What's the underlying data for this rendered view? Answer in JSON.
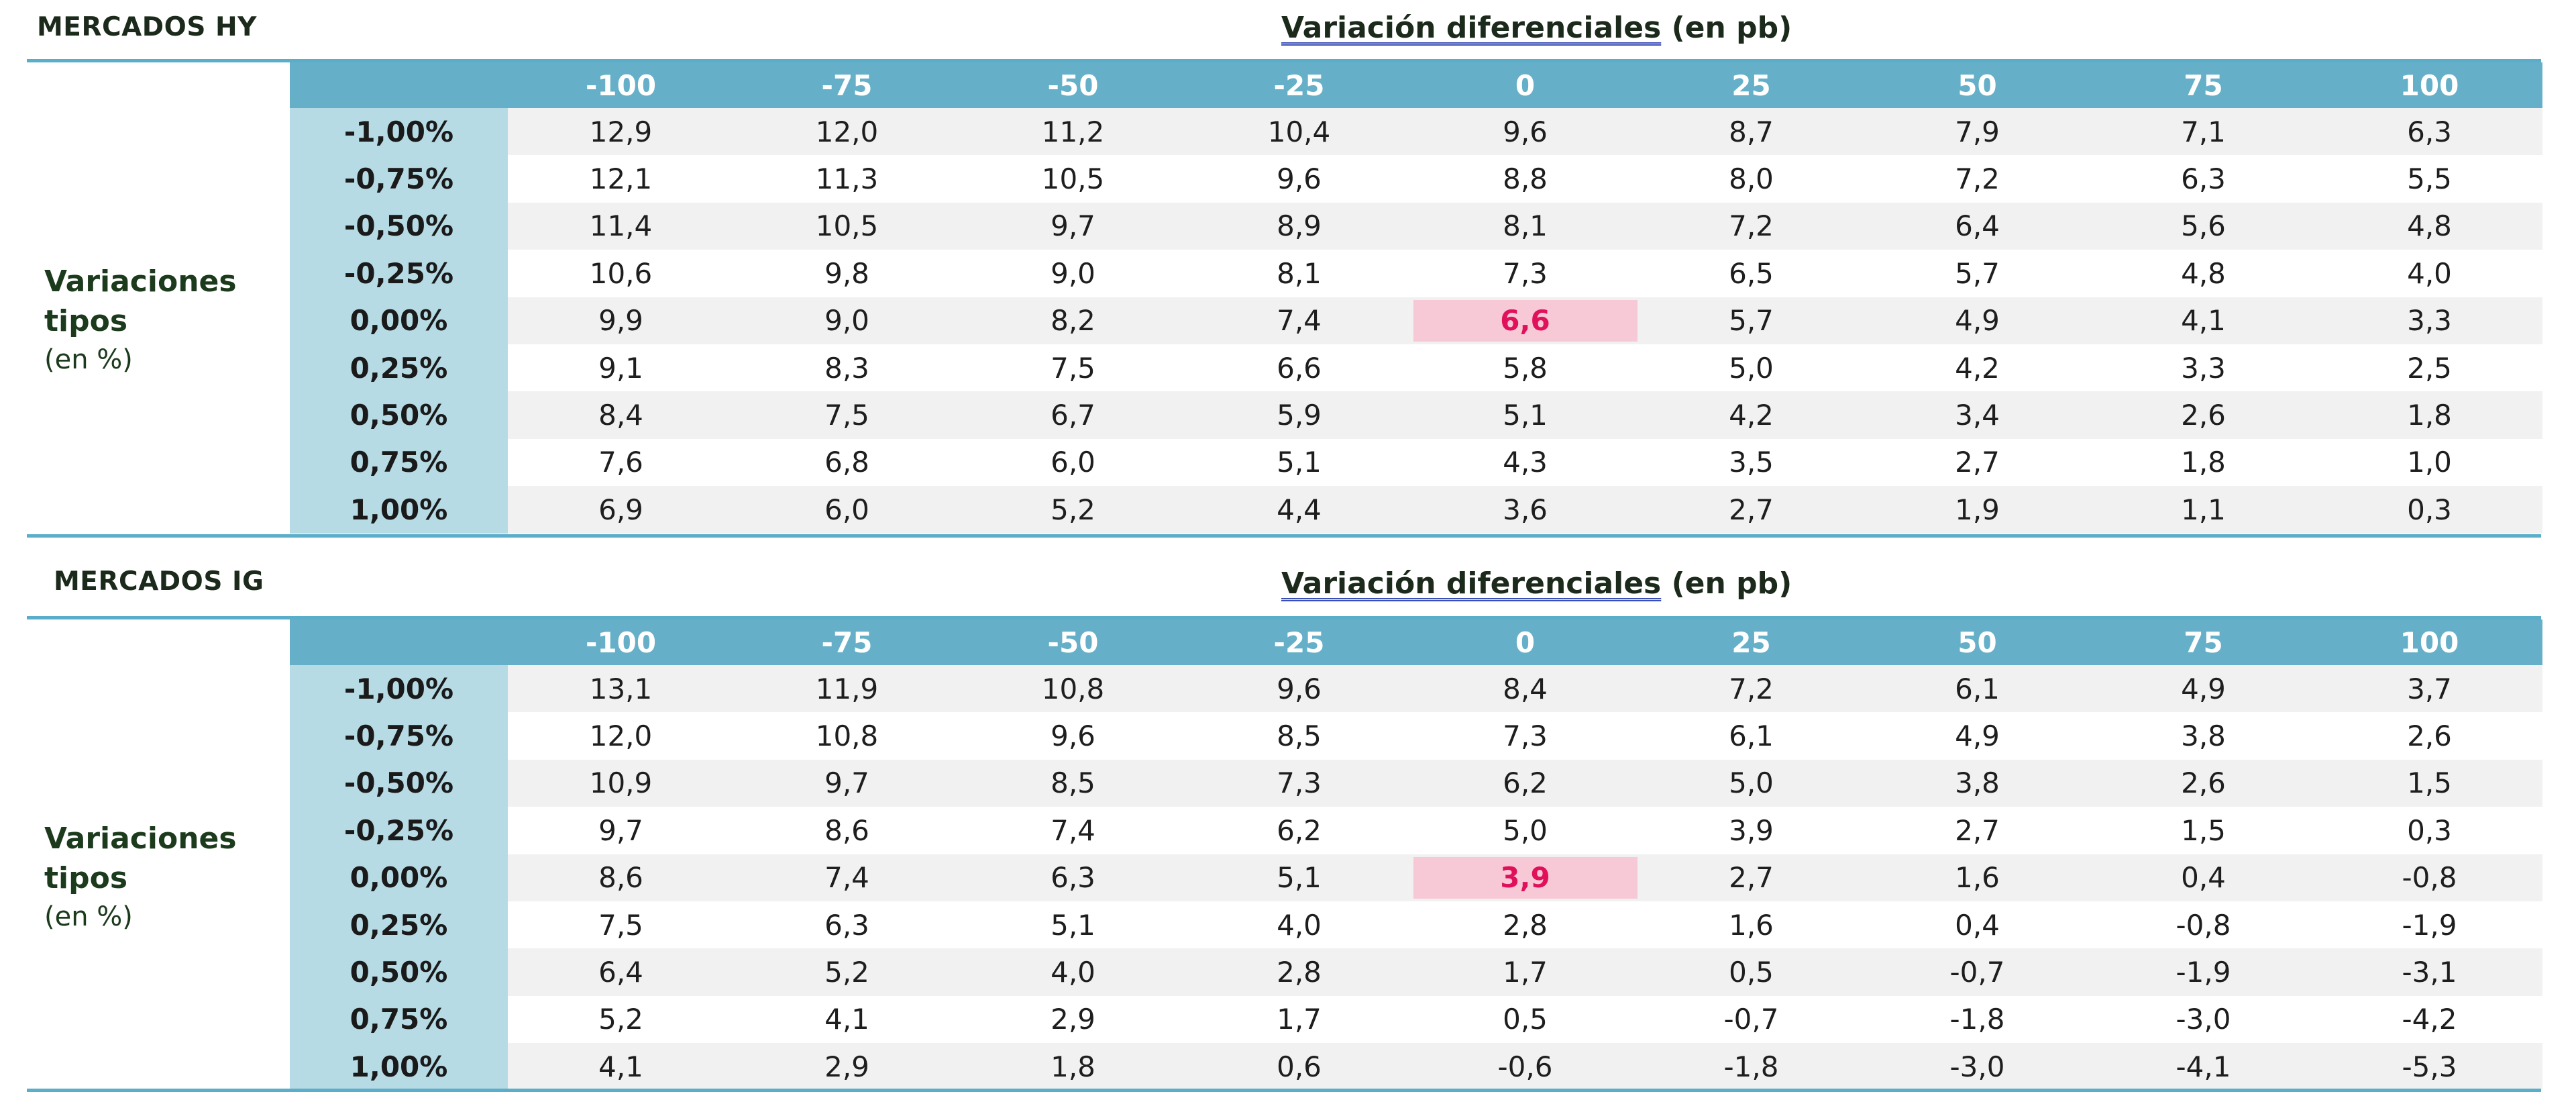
{
  "hy": {
    "title": "MERCADOS HY",
    "subtitle_underlined": "Variación diferenciales",
    "subtitle_rest": " (en pb)",
    "side_label_line1": "Variaciones",
    "side_label_line2": "tipos",
    "side_label_line3": "(en %)",
    "columns": [
      "-100",
      "-75",
      "-50",
      "-25",
      "0",
      "25",
      "50",
      "75",
      "100"
    ],
    "rows": [
      {
        "label": "-1,00%",
        "values": [
          "12,9",
          "12,0",
          "11,2",
          "10,4",
          "9,6",
          "8,7",
          "7,9",
          "7,1",
          "6,3"
        ]
      },
      {
        "label": "-0,75%",
        "values": [
          "12,1",
          "11,3",
          "10,5",
          "9,6",
          "8,8",
          "8,0",
          "7,2",
          "6,3",
          "5,5"
        ]
      },
      {
        "label": "-0,50%",
        "values": [
          "11,4",
          "10,5",
          "9,7",
          "8,9",
          "8,1",
          "7,2",
          "6,4",
          "5,6",
          "4,8"
        ]
      },
      {
        "label": "-0,25%",
        "values": [
          "10,6",
          "9,8",
          "9,0",
          "8,1",
          "7,3",
          "6,5",
          "5,7",
          "4,8",
          "4,0"
        ]
      },
      {
        "label": "0,00%",
        "values": [
          "9,9",
          "9,0",
          "8,2",
          "7,4",
          "6,6",
          "5,7",
          "4,9",
          "4,1",
          "3,3"
        ]
      },
      {
        "label": "0,25%",
        "values": [
          "9,1",
          "8,3",
          "7,5",
          "6,6",
          "5,8",
          "5,0",
          "4,2",
          "3,3",
          "2,5"
        ]
      },
      {
        "label": "0,50%",
        "values": [
          "8,4",
          "7,5",
          "6,7",
          "5,9",
          "5,1",
          "4,2",
          "3,4",
          "2,6",
          "1,8"
        ]
      },
      {
        "label": "0,75%",
        "values": [
          "7,6",
          "6,8",
          "6,0",
          "5,1",
          "4,3",
          "3,5",
          "2,7",
          "1,8",
          "1,0"
        ]
      },
      {
        "label": "1,00%",
        "values": [
          "6,9",
          "6,0",
          "5,2",
          "4,4",
          "3,6",
          "2,7",
          "1,9",
          "1,1",
          "0,3"
        ]
      }
    ],
    "highlight": {
      "row": 4,
      "col": 4
    }
  },
  "ig": {
    "title": "MERCADOS IG",
    "subtitle_underlined": "Variación diferenciales",
    "subtitle_rest": " (en pb)",
    "side_label_line1": "Variaciones",
    "side_label_line2": "tipos",
    "side_label_line3": "(en %)",
    "columns": [
      "-100",
      "-75",
      "-50",
      "-25",
      "0",
      "25",
      "50",
      "75",
      "100"
    ],
    "rows": [
      {
        "label": "-1,00%",
        "values": [
          "13,1",
          "11,9",
          "10,8",
          "9,6",
          "8,4",
          "7,2",
          "6,1",
          "4,9",
          "3,7"
        ]
      },
      {
        "label": "-0,75%",
        "values": [
          "12,0",
          "10,8",
          "9,6",
          "8,5",
          "7,3",
          "6,1",
          "4,9",
          "3,8",
          "2,6"
        ]
      },
      {
        "label": "-0,50%",
        "values": [
          "10,9",
          "9,7",
          "8,5",
          "7,3",
          "6,2",
          "5,0",
          "3,8",
          "2,6",
          "1,5"
        ]
      },
      {
        "label": "-0,25%",
        "values": [
          "9,7",
          "8,6",
          "7,4",
          "6,2",
          "5,0",
          "3,9",
          "2,7",
          "1,5",
          "0,3"
        ]
      },
      {
        "label": "0,00%",
        "values": [
          "8,6",
          "7,4",
          "6,3",
          "5,1",
          "3,9",
          "2,7",
          "1,6",
          "0,4",
          "-0,8"
        ]
      },
      {
        "label": "0,25%",
        "values": [
          "7,5",
          "6,3",
          "5,1",
          "4,0",
          "2,8",
          "1,6",
          "0,4",
          "-0,8",
          "-1,9"
        ]
      },
      {
        "label": "0,50%",
        "values": [
          "6,4",
          "5,2",
          "4,0",
          "2,8",
          "1,7",
          "0,5",
          "-0,7",
          "-1,9",
          "-3,1"
        ]
      },
      {
        "label": "0,75%",
        "values": [
          "5,2",
          "4,1",
          "2,9",
          "1,7",
          "0,5",
          "-0,7",
          "-1,8",
          "-3,0",
          "-4,2"
        ]
      },
      {
        "label": "1,00%",
        "values": [
          "4,1",
          "2,9",
          "1,8",
          "0,6",
          "-0,6",
          "-1,8",
          "-3,0",
          "-4,1",
          "-5,3"
        ]
      }
    ],
    "highlight": {
      "row": 4,
      "col": 4
    }
  },
  "colors": {
    "header_bg": "#65b0c8",
    "row_header_bg": "#b7dbe5",
    "highlight_bg": "#f7c8d6",
    "highlight_text": "#e0105a",
    "rule": "#5aaec9"
  }
}
